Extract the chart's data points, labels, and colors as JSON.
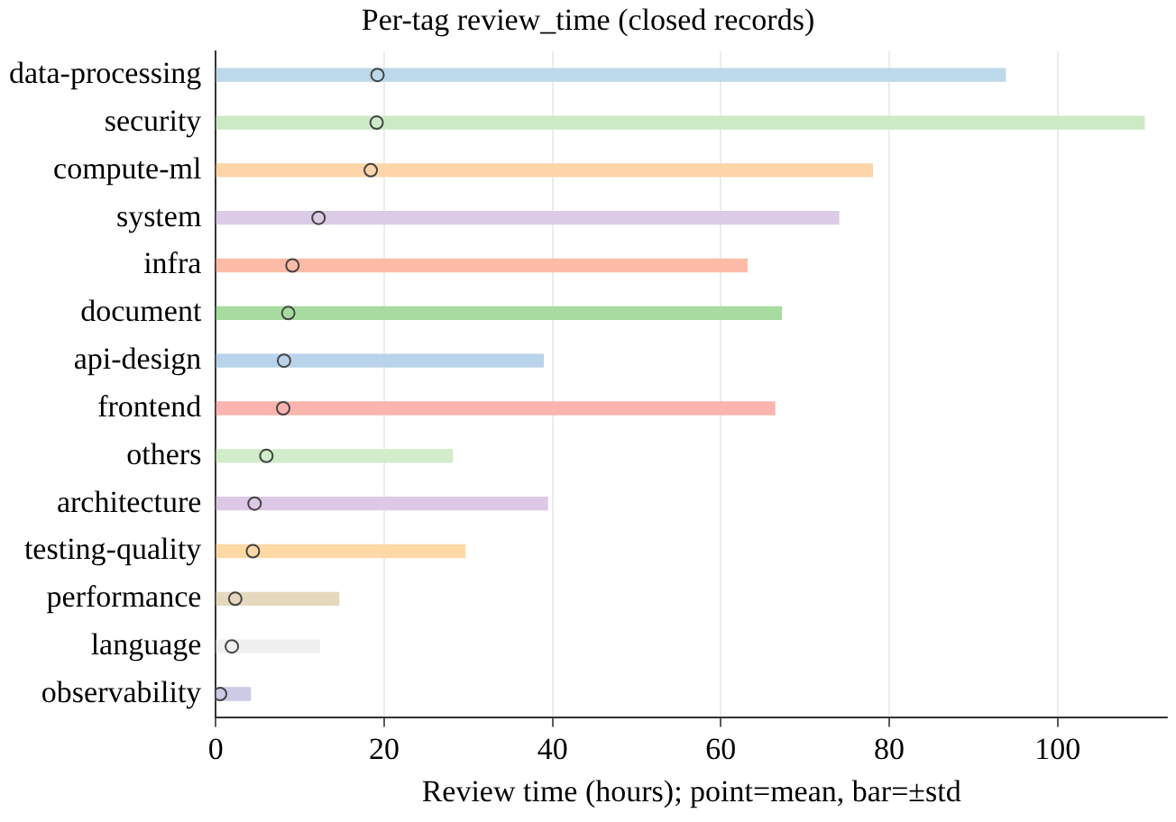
{
  "chart_data": {
    "type": "bar",
    "orientation": "horizontal",
    "title": "Per-tag review_time (closed records)",
    "xlabel": "Review time (hours); point=mean, bar=±std",
    "categories": [
      "data-processing",
      "security",
      "compute-ml",
      "system",
      "infra",
      "document",
      "api-design",
      "frontend",
      "others",
      "architecture",
      "testing-quality",
      "performance",
      "language",
      "observability"
    ],
    "series": [
      {
        "colors": [
          "#bcd9ea",
          "#cdeac6",
          "#fdd5a8",
          "#dccbe6",
          "#fcbba6",
          "#a8dba0",
          "#b8d3ea",
          "#fbb4ae",
          "#d1edc9",
          "#ddc9e6",
          "#fed9a6",
          "#e5d8bd",
          "#f0f0f0",
          "#cbcbe6"
        ],
        "values": [
          93.8,
          110.3,
          78.0,
          74.0,
          63.1,
          67.2,
          38.9,
          66.4,
          28.1,
          39.4,
          29.6,
          14.6,
          12.3,
          4.1
        ]
      },
      {
        "type": "scatter",
        "color": "#444444",
        "marker": "circle",
        "values": [
          19.2,
          19.1,
          18.4,
          12.2,
          9.1,
          8.6,
          8.1,
          8.0,
          6.0,
          4.6,
          4.4,
          2.3,
          1.9,
          0.5
        ]
      }
    ],
    "xlim": [
      0,
      113
    ],
    "xticks": [
      0,
      20,
      40,
      60,
      80,
      100
    ],
    "grid": "x",
    "legend": false
  }
}
